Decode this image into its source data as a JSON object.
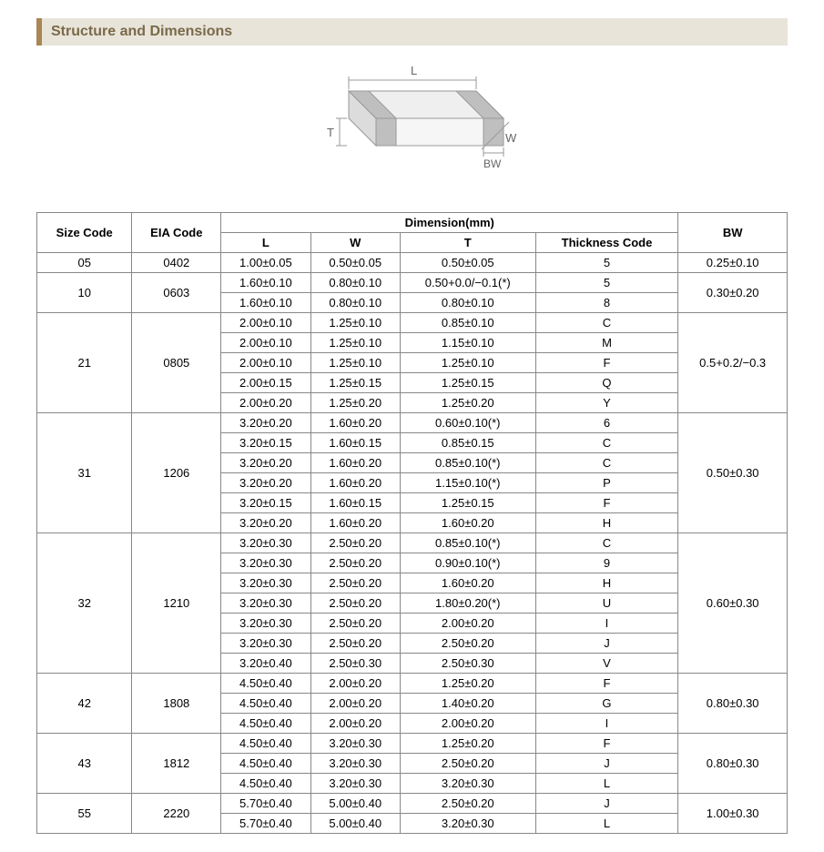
{
  "section_title": "Structure and Dimensions",
  "diagram": {
    "labels": {
      "L": "L",
      "W": "W",
      "T": "T",
      "BW": "BW"
    },
    "stroke": "#999999",
    "fill_light": "#efefef",
    "fill_dark": "#bfbfbf",
    "text_color": "#666666"
  },
  "table": {
    "header_size_code": "Size Code",
    "header_eia_code": "EIA Code",
    "header_dimension": "Dimension(mm)",
    "header_L": "L",
    "header_W": "W",
    "header_T": "T",
    "header_thickness_code": "Thickness Code",
    "header_BW": "BW",
    "colors": {
      "border": "#888888",
      "text": "#000000",
      "bg": "#ffffff"
    },
    "groups": [
      {
        "size_code": "05",
        "eia_code": "0402",
        "bw": "0.25±0.10",
        "rows": [
          {
            "L": "1.00±0.05",
            "W": "0.50±0.05",
            "T": "0.50±0.05",
            "tc": "5"
          }
        ]
      },
      {
        "size_code": "10",
        "eia_code": "0603",
        "bw": "0.30±0.20",
        "rows": [
          {
            "L": "1.60±0.10",
            "W": "0.80±0.10",
            "T": "0.50+0.0/−0.1(*)",
            "tc": "5"
          },
          {
            "L": "1.60±0.10",
            "W": "0.80±0.10",
            "T": "0.80±0.10",
            "tc": "8"
          }
        ]
      },
      {
        "size_code": "21",
        "eia_code": "0805",
        "bw": "0.5+0.2/−0.3",
        "rows": [
          {
            "L": "2.00±0.10",
            "W": "1.25±0.10",
            "T": "0.85±0.10",
            "tc": "C"
          },
          {
            "L": "2.00±0.10",
            "W": "1.25±0.10",
            "T": "1.15±0.10",
            "tc": "M"
          },
          {
            "L": "2.00±0.10",
            "W": "1.25±0.10",
            "T": "1.25±0.10",
            "tc": "F"
          },
          {
            "L": "2.00±0.15",
            "W": "1.25±0.15",
            "T": "1.25±0.15",
            "tc": "Q"
          },
          {
            "L": "2.00±0.20",
            "W": "1.25±0.20",
            "T": "1.25±0.20",
            "tc": "Y"
          }
        ]
      },
      {
        "size_code": "31",
        "eia_code": "1206",
        "bw": "0.50±0.30",
        "rows": [
          {
            "L": "3.20±0.20",
            "W": "1.60±0.20",
            "T": "0.60±0.10(*)",
            "tc": "6"
          },
          {
            "L": "3.20±0.15",
            "W": "1.60±0.15",
            "T": "0.85±0.15",
            "tc": "C"
          },
          {
            "L": "3.20±0.20",
            "W": "1.60±0.20",
            "T": "0.85±0.10(*)",
            "tc": "C"
          },
          {
            "L": "3.20±0.20",
            "W": "1.60±0.20",
            "T": "1.15±0.10(*)",
            "tc": "P"
          },
          {
            "L": "3.20±0.15",
            "W": "1.60±0.15",
            "T": "1.25±0.15",
            "tc": "F"
          },
          {
            "L": "3.20±0.20",
            "W": "1.60±0.20",
            "T": "1.60±0.20",
            "tc": "H"
          }
        ]
      },
      {
        "size_code": "32",
        "eia_code": "1210",
        "bw": "0.60±0.30",
        "rows": [
          {
            "L": "3.20±0.30",
            "W": "2.50±0.20",
            "T": "0.85±0.10(*)",
            "tc": "C"
          },
          {
            "L": "3.20±0.30",
            "W": "2.50±0.20",
            "T": "0.90±0.10(*)",
            "tc": "9"
          },
          {
            "L": "3.20±0.30",
            "W": "2.50±0.20",
            "T": "1.60±0.20",
            "tc": "H"
          },
          {
            "L": "3.20±0.30",
            "W": "2.50±0.20",
            "T": "1.80±0.20(*)",
            "tc": "U"
          },
          {
            "L": "3.20±0.30",
            "W": "2.50±0.20",
            "T": "2.00±0.20",
            "tc": "I"
          },
          {
            "L": "3.20±0.30",
            "W": "2.50±0.20",
            "T": "2.50±0.20",
            "tc": "J"
          },
          {
            "L": "3.20±0.40",
            "W": "2.50±0.30",
            "T": "2.50±0.30",
            "tc": "V"
          }
        ]
      },
      {
        "size_code": "42",
        "eia_code": "1808",
        "bw": "0.80±0.30",
        "rows": [
          {
            "L": "4.50±0.40",
            "W": "2.00±0.20",
            "T": "1.25±0.20",
            "tc": "F"
          },
          {
            "L": "4.50±0.40",
            "W": "2.00±0.20",
            "T": "1.40±0.20",
            "tc": "G"
          },
          {
            "L": "4.50±0.40",
            "W": "2.00±0.20",
            "T": "2.00±0.20",
            "tc": "I"
          }
        ]
      },
      {
        "size_code": "43",
        "eia_code": "1812",
        "bw": "0.80±0.30",
        "rows": [
          {
            "L": "4.50±0.40",
            "W": "3.20±0.30",
            "T": "1.25±0.20",
            "tc": "F"
          },
          {
            "L": "4.50±0.40",
            "W": "3.20±0.30",
            "T": "2.50±0.20",
            "tc": "J"
          },
          {
            "L": "4.50±0.40",
            "W": "3.20±0.30",
            "T": "3.20±0.30",
            "tc": "L"
          }
        ]
      },
      {
        "size_code": "55",
        "eia_code": "2220",
        "bw": "1.00±0.30",
        "rows": [
          {
            "L": "5.70±0.40",
            "W": "5.00±0.40",
            "T": "2.50±0.20",
            "tc": "J"
          },
          {
            "L": "5.70±0.40",
            "W": "5.00±0.40",
            "T": "3.20±0.30",
            "tc": "L"
          }
        ]
      }
    ]
  }
}
